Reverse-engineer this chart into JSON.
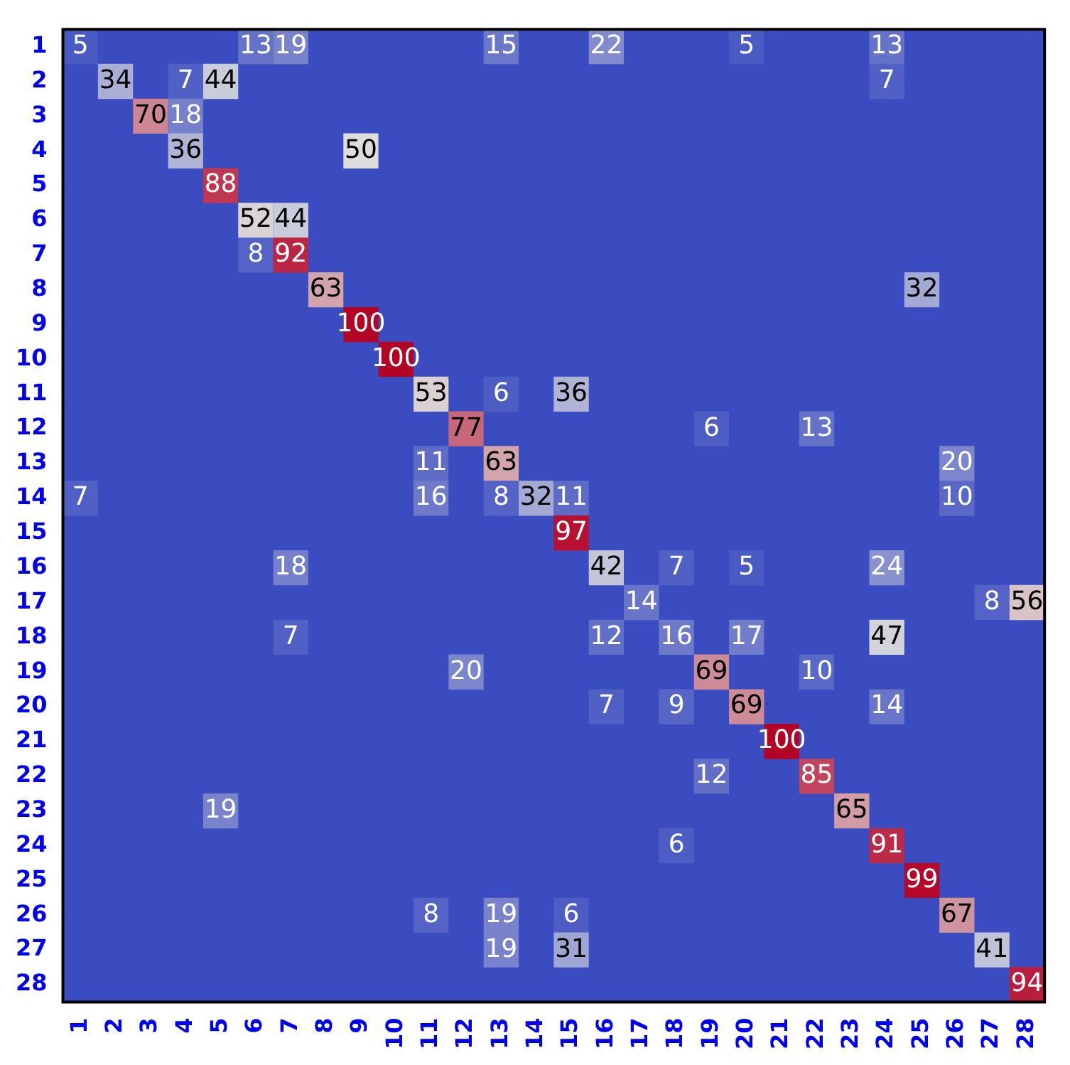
{
  "chart_data": {
    "type": "heatmap",
    "categories": [
      "1",
      "2",
      "3",
      "4",
      "5",
      "6",
      "7",
      "8",
      "9",
      "10",
      "11",
      "12",
      "13",
      "14",
      "15",
      "16",
      "17",
      "18",
      "19",
      "20",
      "21",
      "22",
      "23",
      "24",
      "25",
      "26",
      "27",
      "28"
    ],
    "y_categories": [
      "1",
      "2",
      "3",
      "4",
      "5",
      "6",
      "7",
      "8",
      "9",
      "10",
      "11",
      "12",
      "13",
      "14",
      "15",
      "16",
      "17",
      "18",
      "19",
      "20",
      "21",
      "22",
      "23",
      "24",
      "25",
      "26",
      "27",
      "28"
    ],
    "data_labels": true,
    "cells": [
      [
        5,
        null,
        null,
        null,
        null,
        13,
        19,
        null,
        null,
        null,
        null,
        null,
        15,
        null,
        null,
        22,
        null,
        null,
        null,
        5,
        null,
        null,
        null,
        13,
        null,
        null,
        null,
        null
      ],
      [
        null,
        34,
        null,
        7,
        44,
        null,
        null,
        null,
        null,
        null,
        null,
        null,
        null,
        null,
        null,
        null,
        null,
        null,
        null,
        null,
        null,
        null,
        null,
        7,
        null,
        null,
        null,
        null
      ],
      [
        null,
        null,
        70,
        18,
        null,
        null,
        null,
        null,
        null,
        null,
        null,
        null,
        null,
        null,
        null,
        null,
        null,
        null,
        null,
        null,
        null,
        null,
        null,
        null,
        null,
        null,
        null,
        null
      ],
      [
        null,
        null,
        null,
        36,
        null,
        null,
        null,
        null,
        50,
        null,
        null,
        null,
        null,
        null,
        null,
        null,
        null,
        null,
        null,
        null,
        null,
        null,
        null,
        null,
        null,
        null,
        null,
        null
      ],
      [
        null,
        null,
        null,
        null,
        88,
        null,
        null,
        null,
        null,
        null,
        null,
        null,
        null,
        null,
        null,
        null,
        null,
        null,
        null,
        null,
        null,
        null,
        null,
        null,
        null,
        null,
        null,
        null
      ],
      [
        null,
        null,
        null,
        null,
        null,
        52,
        44,
        null,
        null,
        null,
        null,
        null,
        null,
        null,
        null,
        null,
        null,
        null,
        null,
        null,
        null,
        null,
        null,
        null,
        null,
        null,
        null,
        null
      ],
      [
        null,
        null,
        null,
        null,
        null,
        8,
        92,
        null,
        null,
        null,
        null,
        null,
        null,
        null,
        null,
        null,
        null,
        null,
        null,
        null,
        null,
        null,
        null,
        null,
        null,
        null,
        null,
        null
      ],
      [
        null,
        null,
        null,
        null,
        null,
        null,
        null,
        63,
        null,
        null,
        null,
        null,
        null,
        null,
        null,
        null,
        null,
        null,
        null,
        null,
        null,
        null,
        null,
        null,
        32,
        null,
        null,
        null
      ],
      [
        null,
        null,
        null,
        null,
        null,
        null,
        null,
        null,
        100,
        null,
        null,
        null,
        null,
        null,
        null,
        null,
        null,
        null,
        null,
        null,
        null,
        null,
        null,
        null,
        null,
        null,
        null,
        null
      ],
      [
        null,
        null,
        null,
        null,
        null,
        null,
        null,
        null,
        null,
        100,
        null,
        null,
        null,
        null,
        null,
        null,
        null,
        null,
        null,
        null,
        null,
        null,
        null,
        null,
        null,
        null,
        null,
        null
      ],
      [
        null,
        null,
        null,
        null,
        null,
        null,
        null,
        null,
        null,
        null,
        53,
        null,
        6,
        null,
        36,
        null,
        null,
        null,
        null,
        null,
        null,
        null,
        null,
        null,
        null,
        null,
        null,
        null
      ],
      [
        null,
        null,
        null,
        null,
        null,
        null,
        null,
        null,
        null,
        null,
        null,
        77,
        null,
        null,
        null,
        null,
        null,
        null,
        6,
        null,
        null,
        13,
        null,
        null,
        null,
        null,
        null,
        null
      ],
      [
        null,
        null,
        null,
        null,
        null,
        null,
        null,
        null,
        null,
        null,
        11,
        null,
        63,
        null,
        null,
        null,
        null,
        null,
        null,
        null,
        null,
        null,
        null,
        null,
        null,
        20,
        null,
        null
      ],
      [
        7,
        null,
        null,
        null,
        null,
        null,
        null,
        null,
        null,
        null,
        16,
        null,
        8,
        32,
        11,
        null,
        null,
        null,
        null,
        null,
        null,
        null,
        null,
        null,
        null,
        10,
        null,
        null
      ],
      [
        null,
        null,
        null,
        null,
        null,
        null,
        null,
        null,
        null,
        null,
        null,
        null,
        null,
        null,
        97,
        null,
        null,
        null,
        null,
        null,
        null,
        null,
        null,
        null,
        null,
        null,
        null,
        null
      ],
      [
        null,
        null,
        null,
        null,
        null,
        null,
        18,
        null,
        null,
        null,
        null,
        null,
        null,
        null,
        null,
        42,
        null,
        7,
        null,
        5,
        null,
        null,
        null,
        24,
        null,
        null,
        null,
        null
      ],
      [
        null,
        null,
        null,
        null,
        null,
        null,
        null,
        null,
        null,
        null,
        null,
        null,
        null,
        null,
        null,
        null,
        14,
        null,
        null,
        null,
        null,
        null,
        null,
        null,
        null,
        null,
        8,
        56
      ],
      [
        null,
        null,
        null,
        null,
        null,
        null,
        7,
        null,
        null,
        null,
        null,
        null,
        null,
        null,
        null,
        12,
        null,
        16,
        null,
        17,
        null,
        null,
        null,
        47,
        null,
        null,
        null,
        null
      ],
      [
        null,
        null,
        null,
        null,
        null,
        null,
        null,
        null,
        null,
        null,
        null,
        20,
        null,
        null,
        null,
        null,
        null,
        null,
        69,
        null,
        null,
        10,
        null,
        null,
        null,
        null,
        null,
        null
      ],
      [
        null,
        null,
        null,
        null,
        null,
        null,
        null,
        null,
        null,
        null,
        null,
        null,
        null,
        null,
        null,
        7,
        null,
        9,
        null,
        69,
        null,
        null,
        null,
        14,
        null,
        null,
        null,
        null
      ],
      [
        null,
        null,
        null,
        null,
        null,
        null,
        null,
        null,
        null,
        null,
        null,
        null,
        null,
        null,
        null,
        null,
        null,
        null,
        null,
        null,
        100,
        null,
        null,
        null,
        null,
        null,
        null,
        null
      ],
      [
        null,
        null,
        null,
        null,
        null,
        null,
        null,
        null,
        null,
        null,
        null,
        null,
        null,
        null,
        null,
        null,
        null,
        null,
        12,
        null,
        null,
        85,
        null,
        null,
        null,
        null,
        null,
        null
      ],
      [
        null,
        null,
        null,
        null,
        19,
        null,
        null,
        null,
        null,
        null,
        null,
        null,
        null,
        null,
        null,
        null,
        null,
        null,
        null,
        null,
        null,
        null,
        65,
        null,
        null,
        null,
        null,
        null
      ],
      [
        null,
        null,
        null,
        null,
        null,
        null,
        null,
        null,
        null,
        null,
        null,
        null,
        null,
        null,
        null,
        null,
        null,
        6,
        null,
        null,
        null,
        null,
        null,
        91,
        null,
        null,
        null,
        null
      ],
      [
        null,
        null,
        null,
        null,
        null,
        null,
        null,
        null,
        null,
        null,
        null,
        null,
        null,
        null,
        null,
        null,
        null,
        null,
        null,
        null,
        null,
        null,
        null,
        null,
        99,
        null,
        null,
        null
      ],
      [
        null,
        null,
        null,
        null,
        null,
        null,
        null,
        null,
        null,
        null,
        8,
        null,
        19,
        null,
        6,
        null,
        null,
        null,
        null,
        null,
        null,
        null,
        null,
        null,
        null,
        67,
        null,
        null
      ],
      [
        null,
        null,
        null,
        null,
        null,
        null,
        null,
        null,
        null,
        null,
        null,
        null,
        19,
        null,
        31,
        null,
        null,
        null,
        null,
        null,
        null,
        null,
        null,
        null,
        null,
        null,
        41,
        null
      ],
      [
        null,
        null,
        null,
        null,
        null,
        null,
        null,
        null,
        null,
        null,
        null,
        null,
        null,
        null,
        null,
        null,
        null,
        null,
        null,
        null,
        null,
        null,
        null,
        null,
        null,
        null,
        null,
        94
      ]
    ]
  }
}
